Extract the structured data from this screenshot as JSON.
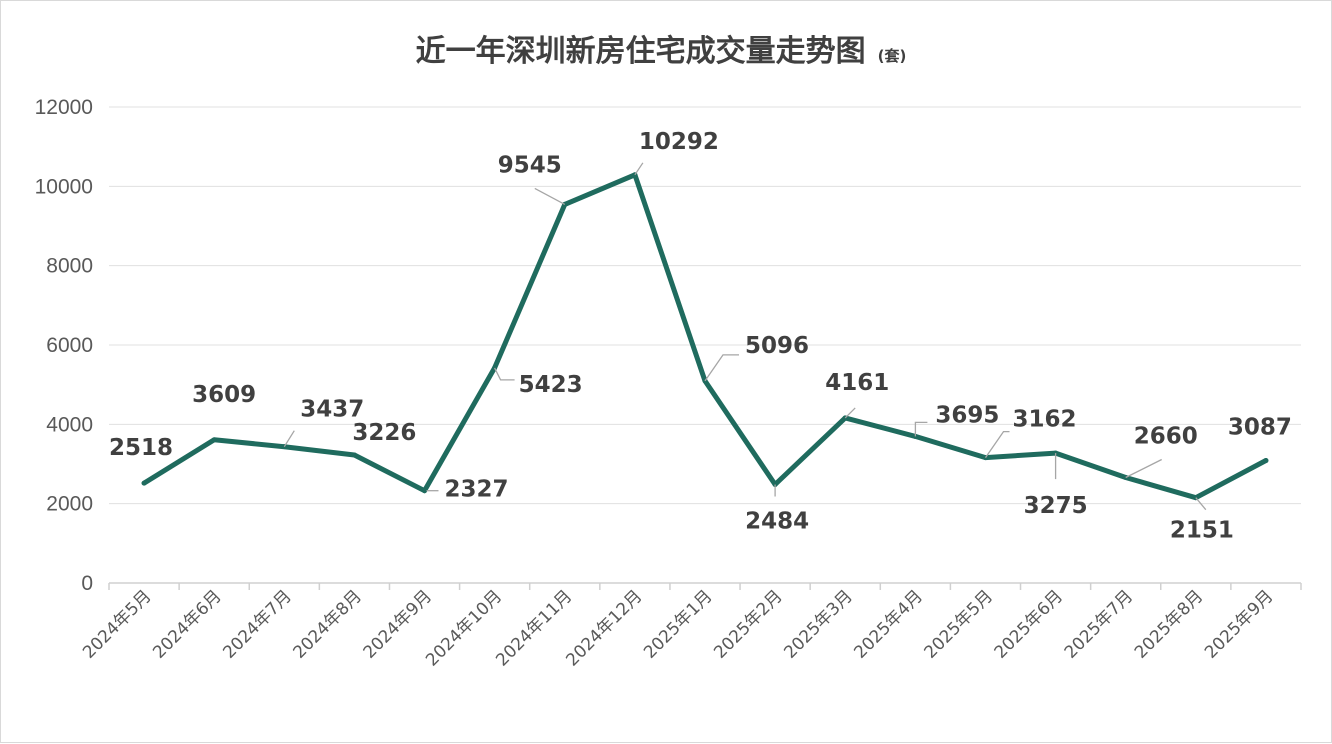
{
  "chart_data": {
    "type": "line",
    "title": "近一年深圳新房住宅成交量走势图",
    "title_unit": "(套)",
    "xlabel": "",
    "ylabel": "",
    "ylim": [
      0,
      12000
    ],
    "yticks": [
      0,
      2000,
      4000,
      6000,
      8000,
      10000,
      12000
    ],
    "grid": true,
    "legend": "none",
    "line_color": "#1f6b5e",
    "categories": [
      "2024年5月",
      "2024年6月",
      "2024年7月",
      "2024年8月",
      "2024年9月",
      "2024年10月",
      "2024年11月",
      "2024年12月",
      "2025年1月",
      "2025年2月",
      "2025年3月",
      "2025年4月",
      "2025年5月",
      "2025年6月",
      "2025年7月",
      "2025年8月",
      "2025年9月"
    ],
    "series": [
      {
        "values": [
          2518,
          3609,
          3437,
          3226,
          2327,
          5423,
          9545,
          10292,
          5096,
          2484,
          4161,
          3695,
          3162,
          3275,
          2660,
          2151,
          3087
        ]
      }
    ]
  }
}
